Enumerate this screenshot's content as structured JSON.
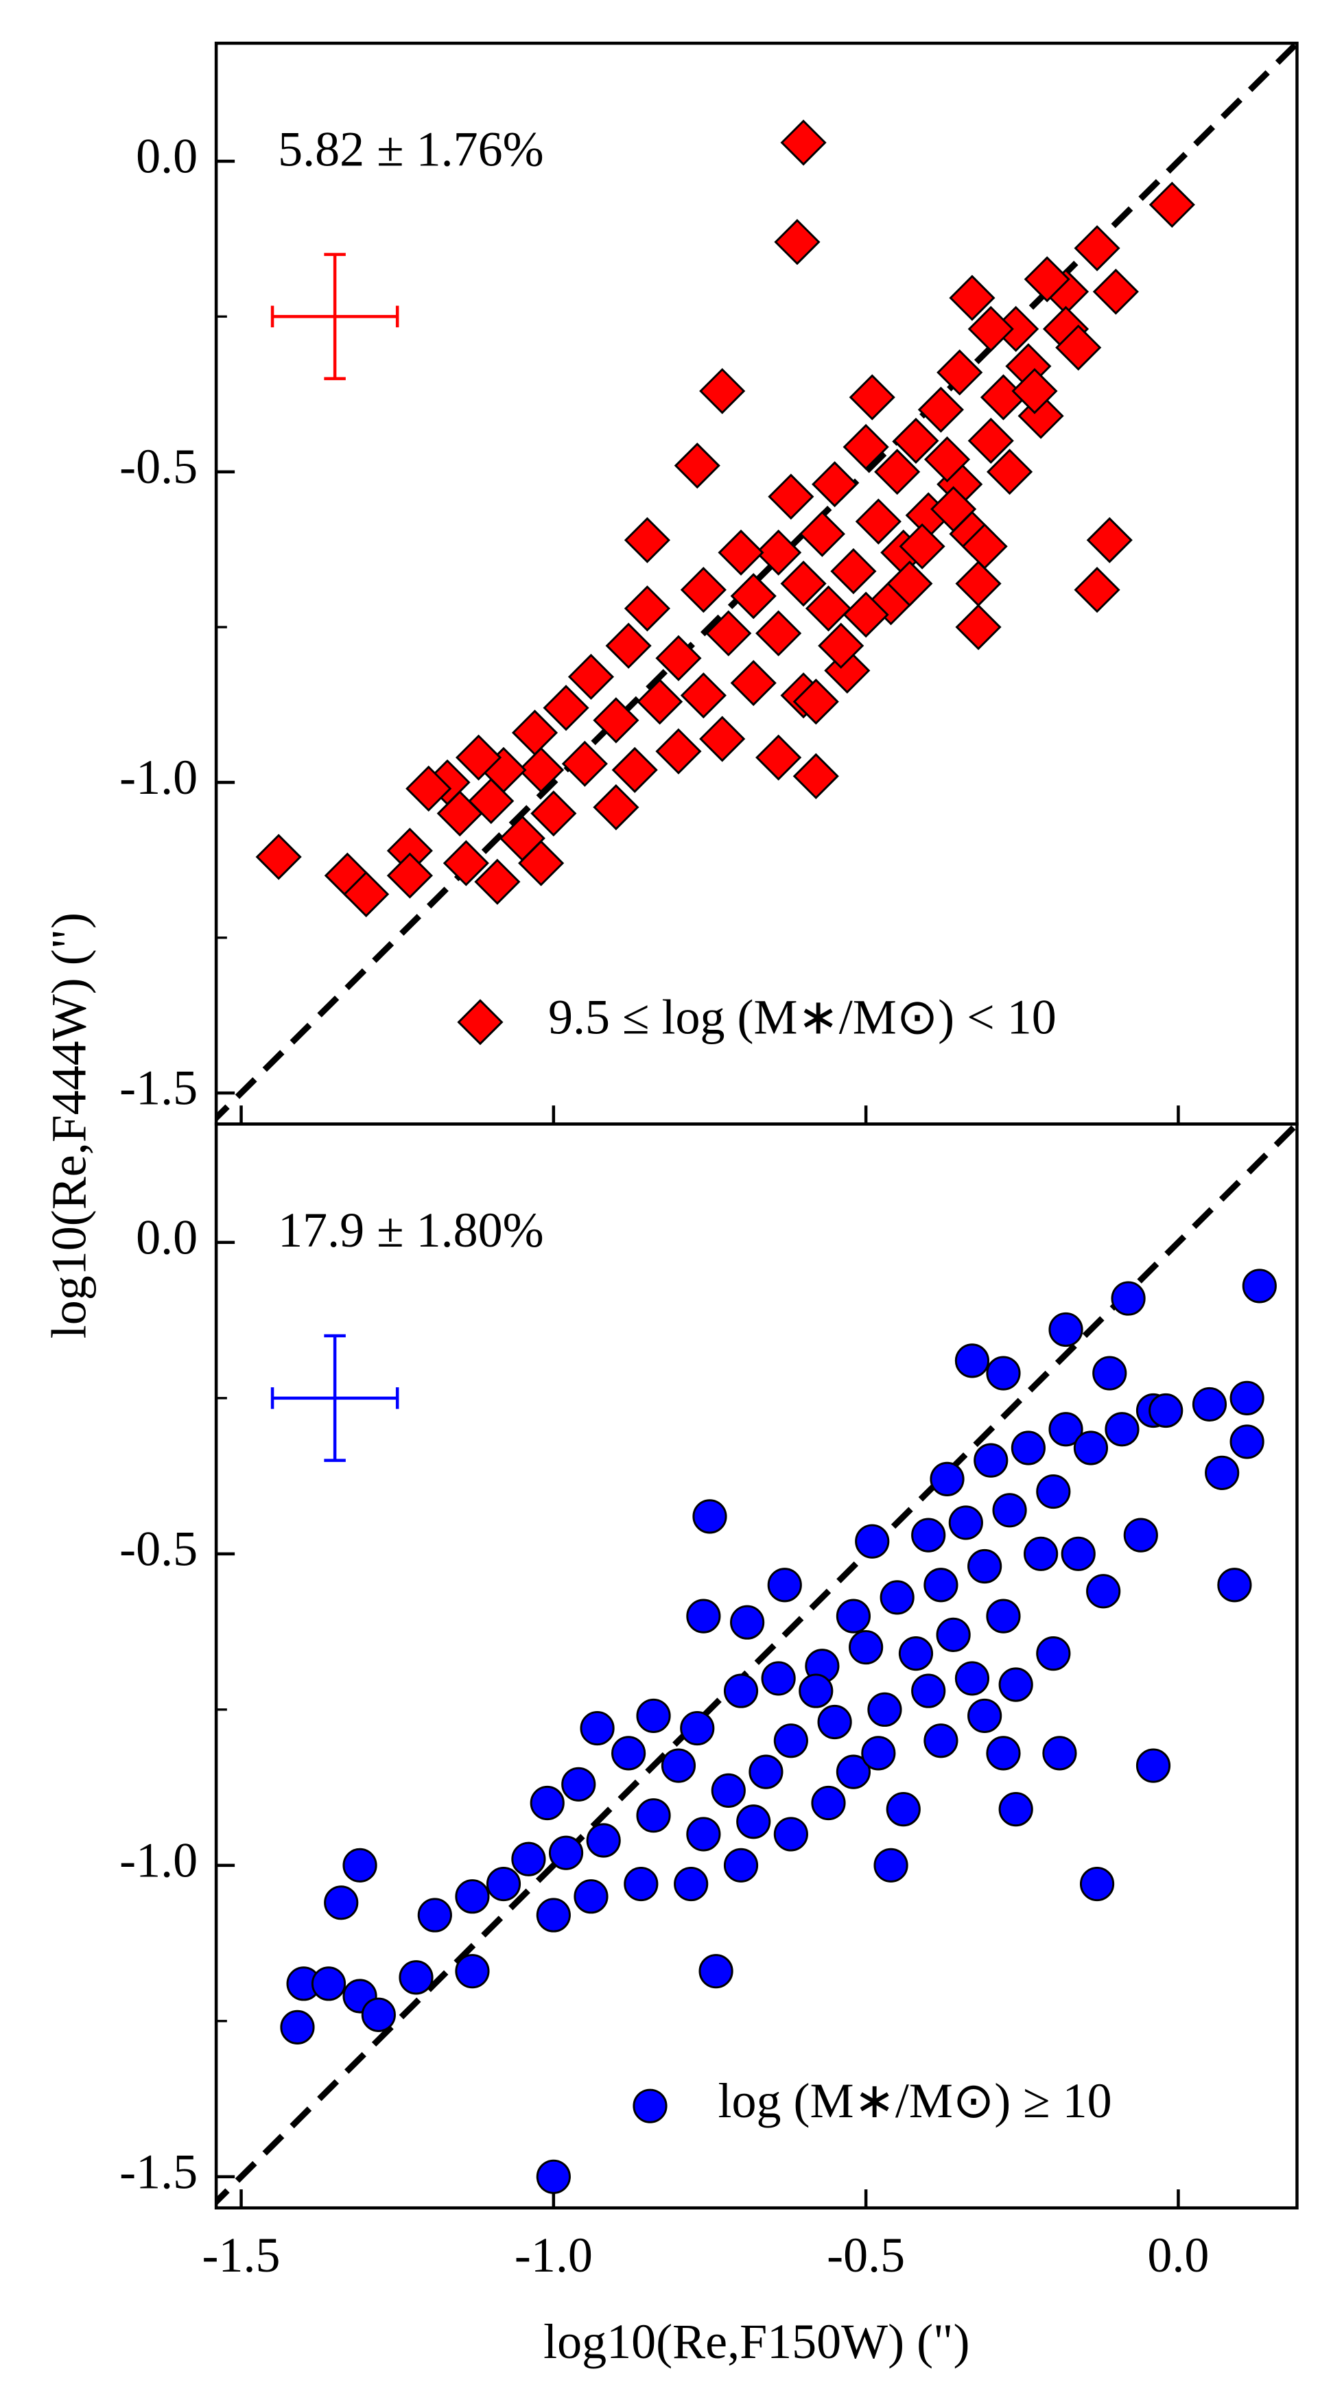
{
  "chart_data": [
    {
      "type": "scatter",
      "annotation": "5.82 ± 1.76%",
      "ylabel": "log10(Re,F444W) (\")",
      "xlim": [
        -1.54,
        0.19
      ],
      "ylim": [
        -1.55,
        0.19
      ],
      "xticks": [
        -1.5,
        -1,
        -0.5,
        0
      ],
      "yticks": [
        {
          "value": 0,
          "label": "0.0"
        },
        -0.5,
        {
          "value": -1,
          "label": "-1.0"
        },
        -1.5
      ],
      "yminor": [
        -0.25,
        -0.75,
        -1.25
      ],
      "identity_line": true,
      "error_bar": {
        "x": -1.35,
        "y": -0.25,
        "xerr": 0.1,
        "yerr": 0.1,
        "color": "#ff0000"
      },
      "series": [
        {
          "name": "9.5 ≤ log (M∗/M⊙) < 10",
          "color": "#ff0000",
          "marker": "diamond",
          "x": [
            -0.6,
            -0.61,
            -0.01,
            -1.44,
            -1.33,
            -1.3,
            -1.23,
            -1.23,
            -1.17,
            -0.11,
            -0.13,
            -0.32,
            -0.32,
            -0.58,
            -0.73,
            -0.77,
            -0.85,
            -0.49,
            -0.13,
            -0.1,
            -0.18,
            -0.33,
            -0.26,
            -0.18,
            -0.3,
            -0.24,
            -0.35,
            -0.28,
            -0.22,
            -0.38,
            -0.42,
            -0.3,
            -0.45,
            -0.35,
            -0.27,
            -0.5,
            -0.55,
            -0.62,
            -0.4,
            -0.48,
            -0.57,
            -0.64,
            -0.33,
            -0.44,
            -0.52,
            -0.6,
            -0.7,
            -0.68,
            -0.76,
            -0.85,
            -0.56,
            -0.64,
            -0.72,
            -0.8,
            -0.88,
            -0.94,
            -0.53,
            -0.6,
            -0.68,
            -0.76,
            -0.83,
            -0.9,
            -0.98,
            -1.03,
            -0.58,
            -0.64,
            -0.73,
            -0.8,
            -0.87,
            -0.95,
            -1.02,
            -1.08,
            -1.12,
            -0.9,
            -1.0,
            -1.05,
            -1.1,
            -1.15,
            -1.14,
            -1.09,
            -1.02,
            -1.2,
            -0.46,
            -0.41,
            -0.36,
            -0.23,
            -0.16,
            -0.21,
            -0.37,
            -0.43,
            -0.31,
            -0.54,
            -0.5
          ],
          "y": [
            0.03,
            -0.13,
            -0.07,
            -1.12,
            -1.15,
            -1.18,
            -1.11,
            -1.15,
            -1.0,
            -0.61,
            -0.69,
            -0.68,
            -0.75,
            -0.99,
            -0.37,
            -0.49,
            -0.61,
            -0.38,
            -0.14,
            -0.21,
            -0.21,
            -0.22,
            -0.27,
            -0.27,
            -0.27,
            -0.33,
            -0.34,
            -0.38,
            -0.41,
            -0.4,
            -0.45,
            -0.45,
            -0.5,
            -0.52,
            -0.5,
            -0.46,
            -0.52,
            -0.54,
            -0.57,
            -0.58,
            -0.6,
            -0.63,
            -0.6,
            -0.63,
            -0.66,
            -0.68,
            -0.63,
            -0.7,
            -0.69,
            -0.72,
            -0.72,
            -0.76,
            -0.76,
            -0.8,
            -0.78,
            -0.83,
            -0.82,
            -0.86,
            -0.84,
            -0.86,
            -0.87,
            -0.9,
            -0.88,
            -0.92,
            -0.87,
            -0.96,
            -0.93,
            -0.95,
            -0.98,
            -0.97,
            -0.98,
            -0.98,
            -0.96,
            -1.04,
            -1.05,
            -1.09,
            -1.03,
            -1.05,
            -1.13,
            -1.16,
            -1.13,
            -1.01,
            -0.71,
            -0.62,
            -0.56,
            -0.37,
            -0.3,
            -0.19,
            -0.48,
            -0.68,
            -0.62,
            -0.78,
            -0.73
          ]
        }
      ]
    },
    {
      "type": "scatter",
      "annotation": "17.9 ± 1.80%",
      "xlabel": "log10(Re,F150W) (\")",
      "xlim": [
        -1.54,
        0.19
      ],
      "ylim": [
        -1.55,
        0.19
      ],
      "xticks": [
        -1.5,
        {
          "value": -1,
          "label": "-1.0"
        },
        -0.5,
        {
          "value": 0,
          "label": "0.0"
        }
      ],
      "yticks": [
        {
          "value": 0,
          "label": "0.0"
        },
        -0.5,
        {
          "value": -1,
          "label": "-1.0"
        },
        -1.5
      ],
      "yminor": [
        -0.25,
        -0.75,
        -1.25
      ],
      "identity_line": true,
      "error_bar": {
        "x": -1.35,
        "y": -0.25,
        "xerr": 0.1,
        "yerr": 0.1,
        "color": "#0000ff"
      },
      "series": [
        {
          "name": "log (M∗/M⊙) ≥ 10",
          "color": "#0000ff",
          "marker": "circle",
          "x": [
            0.13,
            -0.08,
            -0.18,
            -0.33,
            -0.28,
            -0.11,
            0.05,
            0.11,
            -0.04,
            0.07,
            0.11,
            0.09,
            -0.06,
            -0.04,
            -0.19,
            -0.28,
            -0.26,
            -0.13,
            -0.44,
            -0.46,
            -0.75,
            -0.76,
            -0.74,
            -1.0,
            -1.41,
            -1.4,
            -1.36,
            -1.31,
            -1.28,
            -1.22,
            -1.13,
            -1.34,
            -1.31,
            -1.19,
            -1.0,
            -1.01,
            -0.93,
            -0.63,
            -0.69,
            -0.49,
            -0.18,
            -0.24,
            -0.3,
            -0.37,
            -0.2,
            -0.27,
            -0.34,
            -0.4,
            -0.22,
            -0.31,
            -0.38,
            -0.45,
            -0.52,
            -0.28,
            -0.36,
            -0.42,
            -0.5,
            -0.57,
            -0.64,
            -0.33,
            -0.4,
            -0.47,
            -0.55,
            -0.62,
            -0.7,
            -0.77,
            -0.84,
            -0.38,
            -0.52,
            -0.66,
            -0.72,
            -0.8,
            -0.88,
            -0.96,
            -0.68,
            -0.76,
            -0.84,
            -0.92,
            -0.98,
            -1.04,
            -1.08,
            -1.13,
            -0.86,
            -0.94,
            -0.62,
            -0.56,
            -0.48,
            -0.58,
            -0.14,
            -0.09,
            -0.02,
            -0.12,
            -0.16,
            -0.2,
            -0.26,
            -0.31,
            -0.7,
            -0.78
          ],
          "y": [
            -0.07,
            -0.09,
            -0.14,
            -0.19,
            -0.21,
            -0.21,
            -0.26,
            -0.25,
            -0.27,
            -0.37,
            -0.32,
            -0.55,
            -0.47,
            -0.84,
            -0.82,
            -0.82,
            -0.91,
            -1.03,
            -0.91,
            -1.0,
            -0.44,
            -0.6,
            -1.17,
            -1.5,
            -1.26,
            -1.19,
            -1.19,
            -1.21,
            -1.24,
            -1.18,
            -1.17,
            -1.06,
            -1.0,
            -1.08,
            -1.08,
            -0.9,
            -0.78,
            -0.55,
            -0.61,
            -0.48,
            -0.3,
            -0.33,
            -0.35,
            -0.38,
            -0.4,
            -0.43,
            -0.45,
            -0.47,
            -0.5,
            -0.52,
            -0.55,
            -0.57,
            -0.6,
            -0.6,
            -0.63,
            -0.66,
            -0.65,
            -0.68,
            -0.7,
            -0.7,
            -0.72,
            -0.75,
            -0.77,
            -0.8,
            -0.72,
            -0.78,
            -0.76,
            -0.8,
            -0.85,
            -0.85,
            -0.88,
            -0.84,
            -0.82,
            -0.87,
            -0.93,
            -0.95,
            -0.92,
            -0.96,
            -0.98,
            -0.99,
            -1.03,
            -1.05,
            -1.03,
            -1.05,
            -0.95,
            -0.9,
            -0.82,
            -0.72,
            -0.33,
            -0.3,
            -0.27,
            -0.56,
            -0.5,
            -0.66,
            -0.71,
            -0.76,
            -1.0,
            -1.03
          ]
        }
      ]
    }
  ]
}
